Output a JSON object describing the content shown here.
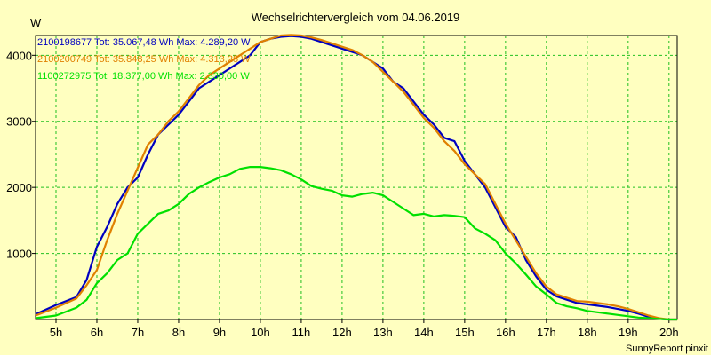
{
  "chart_data": {
    "type": "line",
    "title": "Wechselrichtervergleich vom 04.06.2019",
    "ylabel": "W",
    "footer": "SunnyReport pinxit",
    "xlim": [
      4.5,
      20.2
    ],
    "ylim": [
      0,
      4300
    ],
    "x_ticks": [
      {
        "value": 5,
        "label": "5h"
      },
      {
        "value": 6,
        "label": "6h"
      },
      {
        "value": 7,
        "label": "7h"
      },
      {
        "value": 8,
        "label": "8h"
      },
      {
        "value": 9,
        "label": "9h"
      },
      {
        "value": 10,
        "label": "10h"
      },
      {
        "value": 11,
        "label": "11h"
      },
      {
        "value": 12,
        "label": "12h"
      },
      {
        "value": 13,
        "label": "13h"
      },
      {
        "value": 14,
        "label": "14h"
      },
      {
        "value": 15,
        "label": "15h"
      },
      {
        "value": 16,
        "label": "16h"
      },
      {
        "value": 17,
        "label": "17h"
      },
      {
        "value": 18,
        "label": "18h"
      },
      {
        "value": 19,
        "label": "19h"
      },
      {
        "value": 20,
        "label": "20h"
      }
    ],
    "y_ticks": [
      {
        "value": 1000,
        "label": "1000"
      },
      {
        "value": 2000,
        "label": "2000"
      },
      {
        "value": 3000,
        "label": "3000"
      },
      {
        "value": 4000,
        "label": "4000"
      }
    ],
    "grid": true,
    "legend_position": "top-left",
    "series": [
      {
        "name": "2100198677 Tot: 35.067,48 Wh Max: 4.289,20 W",
        "color": "#0000c0",
        "x": [
          4.5,
          5.0,
          5.5,
          5.75,
          6.0,
          6.25,
          6.5,
          6.75,
          7.0,
          7.25,
          7.5,
          7.75,
          8.0,
          8.25,
          8.5,
          8.75,
          9.0,
          9.25,
          9.5,
          9.75,
          10.0,
          10.25,
          10.5,
          10.75,
          11.0,
          11.25,
          11.5,
          11.75,
          12.0,
          12.25,
          12.5,
          12.75,
          13.0,
          13.25,
          13.5,
          13.75,
          14.0,
          14.25,
          14.5,
          14.75,
          15.0,
          15.25,
          15.5,
          15.75,
          16.0,
          16.25,
          16.5,
          16.75,
          17.0,
          17.25,
          17.5,
          17.75,
          18.0,
          18.25,
          18.5,
          18.75,
          19.0,
          19.25,
          19.5,
          19.75,
          20.0,
          20.2
        ],
        "y": [
          80,
          220,
          340,
          600,
          1100,
          1400,
          1750,
          2000,
          2150,
          2500,
          2800,
          2950,
          3100,
          3300,
          3500,
          3600,
          3700,
          3800,
          3900,
          4000,
          4200,
          4250,
          4280,
          4290,
          4280,
          4250,
          4200,
          4150,
          4100,
          4050,
          4000,
          3900,
          3800,
          3600,
          3500,
          3300,
          3100,
          2950,
          2750,
          2700,
          2400,
          2200,
          2000,
          1700,
          1400,
          1250,
          900,
          650,
          450,
          350,
          300,
          250,
          230,
          210,
          190,
          160,
          130,
          90,
          40,
          10,
          0,
          0
        ]
      },
      {
        "name": "2100200749 Tot: 35.848,25 Wh Max: 4.313,25 W",
        "color": "#e08000",
        "x": [
          4.5,
          5.0,
          5.5,
          5.75,
          6.0,
          6.25,
          6.5,
          6.75,
          7.0,
          7.25,
          7.5,
          7.75,
          8.0,
          8.25,
          8.5,
          8.75,
          9.0,
          9.25,
          9.5,
          9.75,
          10.0,
          10.25,
          10.5,
          10.75,
          11.0,
          11.25,
          11.5,
          11.75,
          12.0,
          12.25,
          12.5,
          12.75,
          13.0,
          13.25,
          13.5,
          13.75,
          14.0,
          14.25,
          14.5,
          14.75,
          15.0,
          15.25,
          15.5,
          15.75,
          16.0,
          16.25,
          16.5,
          16.75,
          17.0,
          17.25,
          17.5,
          17.75,
          18.0,
          18.25,
          18.5,
          18.75,
          19.0,
          19.25,
          19.5,
          19.75,
          20.0,
          20.2
        ],
        "y": [
          60,
          180,
          320,
          520,
          750,
          1200,
          1600,
          1950,
          2300,
          2650,
          2800,
          3000,
          3150,
          3350,
          3550,
          3700,
          3800,
          3900,
          4000,
          4100,
          4200,
          4250,
          4300,
          4310,
          4300,
          4270,
          4230,
          4180,
          4130,
          4080,
          4000,
          3900,
          3750,
          3600,
          3450,
          3250,
          3050,
          2900,
          2700,
          2550,
          2350,
          2200,
          2050,
          1750,
          1450,
          1200,
          950,
          700,
          500,
          380,
          330,
          280,
          270,
          250,
          230,
          200,
          160,
          110,
          60,
          20,
          0,
          0
        ]
      },
      {
        "name": "1100272975 Tot: 18.377,00 Wh Max: 2.330,00 W",
        "color": "#00e000",
        "x": [
          4.5,
          5.0,
          5.5,
          5.75,
          6.0,
          6.25,
          6.5,
          6.75,
          7.0,
          7.25,
          7.5,
          7.75,
          8.0,
          8.25,
          8.5,
          8.75,
          9.0,
          9.25,
          9.5,
          9.75,
          10.0,
          10.25,
          10.5,
          10.75,
          11.0,
          11.25,
          11.5,
          11.75,
          12.0,
          12.25,
          12.5,
          12.75,
          13.0,
          13.25,
          13.5,
          13.75,
          14.0,
          14.25,
          14.5,
          14.75,
          15.0,
          15.25,
          15.5,
          15.75,
          16.0,
          16.25,
          16.5,
          16.75,
          17.0,
          17.25,
          17.5,
          17.75,
          18.0,
          18.25,
          18.5,
          18.75,
          19.0,
          19.25,
          19.5,
          19.75,
          20.0,
          20.2
        ],
        "y": [
          20,
          60,
          180,
          300,
          550,
          700,
          900,
          1000,
          1300,
          1450,
          1600,
          1650,
          1750,
          1900,
          2000,
          2080,
          2150,
          2200,
          2280,
          2310,
          2310,
          2290,
          2260,
          2200,
          2120,
          2020,
          1980,
          1950,
          1880,
          1860,
          1900,
          1920,
          1880,
          1780,
          1680,
          1580,
          1600,
          1560,
          1580,
          1570,
          1550,
          1380,
          1300,
          1200,
          1000,
          850,
          680,
          500,
          380,
          250,
          200,
          170,
          130,
          110,
          90,
          70,
          50,
          30,
          20,
          10,
          0,
          0
        ]
      }
    ]
  }
}
